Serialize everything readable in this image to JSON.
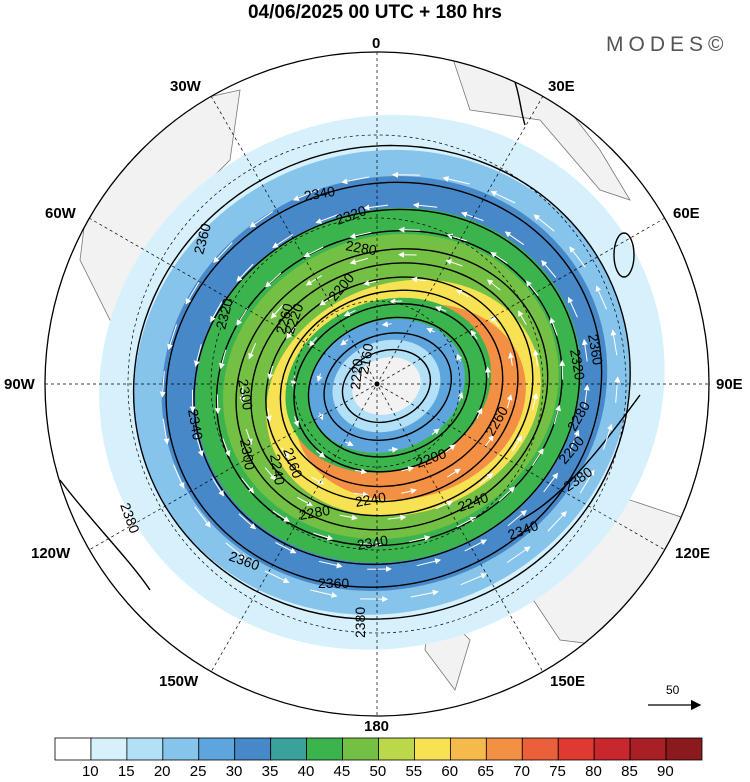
{
  "title": "04/06/2025  00 UTC  + 180 hrs",
  "brand": "MODES©",
  "longitude_labels": [
    "0",
    "30E",
    "60E",
    "90E",
    "120E",
    "150E",
    "180",
    "150W",
    "120W",
    "90W",
    "60W",
    "30W"
  ],
  "contour_labels": [
    "2160",
    "2160",
    "2200",
    "2200",
    "2200",
    "2220",
    "2220",
    "2240",
    "2240",
    "2240",
    "2260",
    "2260",
    "2280",
    "2280",
    "2280",
    "2300",
    "2300",
    "2320",
    "2320",
    "2320",
    "2340",
    "2340",
    "2340",
    "2340",
    "2360",
    "2360",
    "2360",
    "2360",
    "2380",
    "2380",
    "2380"
  ],
  "reference_vector": {
    "value": "50",
    "icon": "arrow-right-icon"
  },
  "colorbar": {
    "ticks": [
      "10",
      "15",
      "20",
      "25",
      "30",
      "35",
      "40",
      "45",
      "50",
      "55",
      "60",
      "65",
      "70",
      "75",
      "80",
      "85",
      "90"
    ],
    "colors": [
      "#ffffff",
      "#d6f1fc",
      "#b2e0f7",
      "#86c4ec",
      "#5fa5dd",
      "#4688c8",
      "#3aa29b",
      "#3cb44d",
      "#74c044",
      "#bad84a",
      "#f7e253",
      "#f6b94b",
      "#f39043",
      "#e9603a",
      "#de3a32",
      "#c8272d",
      "#a91f26",
      "#8a1a1e"
    ]
  },
  "chart_data": {
    "type": "polar-stereographic-map",
    "projection": "south polar stereographic",
    "shaded_field_range": [
      10,
      90
    ],
    "contour_interval": 20,
    "contour_range": [
      2160,
      2380
    ],
    "streamline_arrows": "white"
  }
}
